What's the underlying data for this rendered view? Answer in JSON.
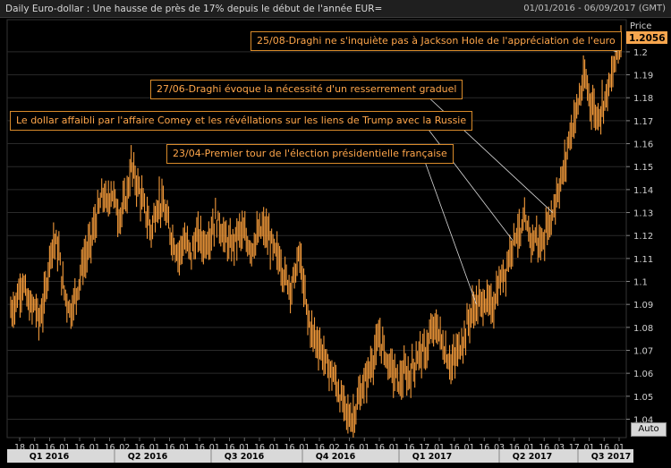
{
  "header": {
    "title": "Daily Euro-dollar : Une hausse de près de 17% depuis le début de l'année EUR=",
    "date_range": "01/01/2016 - 06/09/2017 (GMT)"
  },
  "axis": {
    "price_label": "Price",
    "last_price": "1.2056",
    "auto_label": "Auto"
  },
  "annotations": [
    {
      "text": "25/08-Draghi ne s'inquiète pas à Jackson Hole de l'appréciation de l'euro"
    },
    {
      "text": "27/06-Draghi évoque la nécessité d'un resserrement graduel"
    },
    {
      "text": "Le dollar affaibli par l'affaire Comey et les révéllations sur les liens de Trump avec la Russie"
    },
    {
      "text": "23/04-Premier tour de l'élection présidentielle française"
    }
  ],
  "chart_data": {
    "type": "bar",
    "subtype": "ohlc-bar",
    "title": "Daily Euro-dollar : Une hausse de près de 17% depuis le début de l'année EUR=",
    "ylabel": "Price",
    "ylim": [
      1.032,
      1.214
    ],
    "y_ticks": [
      1.04,
      1.05,
      1.06,
      1.07,
      1.08,
      1.09,
      1.1,
      1.11,
      1.12,
      1.13,
      1.14,
      1.15,
      1.16,
      1.17,
      1.18,
      1.19,
      1.2
    ],
    "x_tick_labels": [
      "18",
      "01",
      "16",
      "01",
      "16",
      "01",
      "16",
      "02",
      "16",
      "01",
      "16",
      "01",
      "16",
      "01",
      "16",
      "01",
      "16",
      "01",
      "16",
      "01",
      "16",
      "02",
      "16",
      "01",
      "16",
      "01",
      "16",
      "17",
      "01",
      "16",
      "01",
      "16",
      "03",
      "16",
      "01",
      "16",
      "03",
      "17",
      "01",
      "16",
      "01"
    ],
    "quarters": [
      "Q1 2016",
      "Q2 2016",
      "Q3 2016",
      "Q4 2016",
      "Q1 2017",
      "Q2 2017",
      "Q3 2017"
    ],
    "series": [
      {
        "color": "#f39a3a",
        "points": [
          [
            0,
            1.087
          ],
          [
            3,
            1.09
          ],
          [
            6,
            1.095
          ],
          [
            9,
            1.1
          ],
          [
            12,
            1.092
          ],
          [
            15,
            1.088
          ],
          [
            18,
            1.09
          ],
          [
            21,
            1.083
          ],
          [
            24,
            1.088
          ],
          [
            27,
            1.1
          ],
          [
            30,
            1.115
          ],
          [
            33,
            1.118
          ],
          [
            36,
            1.112
          ],
          [
            39,
            1.098
          ],
          [
            42,
            1.092
          ],
          [
            45,
            1.087
          ],
          [
            48,
            1.093
          ],
          [
            51,
            1.1
          ],
          [
            54,
            1.108
          ],
          [
            57,
            1.112
          ],
          [
            60,
            1.118
          ],
          [
            63,
            1.125
          ],
          [
            66,
            1.132
          ],
          [
            69,
            1.138
          ],
          [
            72,
            1.133
          ],
          [
            75,
            1.14
          ],
          [
            78,
            1.135
          ],
          [
            81,
            1.128
          ],
          [
            84,
            1.132
          ],
          [
            87,
            1.138
          ],
          [
            90,
            1.15
          ],
          [
            93,
            1.145
          ],
          [
            96,
            1.14
          ],
          [
            99,
            1.133
          ],
          [
            102,
            1.128
          ],
          [
            105,
            1.122
          ],
          [
            108,
            1.13
          ],
          [
            111,
            1.135
          ],
          [
            114,
            1.132
          ],
          [
            117,
            1.126
          ],
          [
            120,
            1.12
          ],
          [
            123,
            1.115
          ],
          [
            126,
            1.112
          ],
          [
            129,
            1.118
          ],
          [
            132,
            1.115
          ],
          [
            135,
            1.112
          ],
          [
            138,
            1.118
          ],
          [
            141,
            1.12
          ],
          [
            144,
            1.116
          ],
          [
            147,
            1.118
          ],
          [
            150,
            1.122
          ],
          [
            153,
            1.127
          ],
          [
            156,
            1.125
          ],
          [
            159,
            1.12
          ],
          [
            162,
            1.117
          ],
          [
            165,
            1.115
          ],
          [
            168,
            1.119
          ],
          [
            171,
            1.122
          ],
          [
            174,
            1.12
          ],
          [
            177,
            1.117
          ],
          [
            180,
            1.115
          ],
          [
            183,
            1.118
          ],
          [
            186,
            1.121
          ],
          [
            189,
            1.123
          ],
          [
            192,
            1.12
          ],
          [
            195,
            1.116
          ],
          [
            198,
            1.112
          ],
          [
            201,
            1.11
          ],
          [
            204,
            1.103
          ],
          [
            207,
            1.1
          ],
          [
            210,
            1.098
          ],
          [
            213,
            1.105
          ],
          [
            216,
            1.112
          ],
          [
            219,
            1.096
          ],
          [
            222,
            1.085
          ],
          [
            225,
            1.078
          ],
          [
            228,
            1.075
          ],
          [
            231,
            1.072
          ],
          [
            234,
            1.067
          ],
          [
            237,
            1.063
          ],
          [
            240,
            1.06
          ],
          [
            243,
            1.056
          ],
          [
            246,
            1.05
          ],
          [
            249,
            1.046
          ],
          [
            252,
            1.042
          ],
          [
            255,
            1.04
          ],
          [
            258,
            1.045
          ],
          [
            261,
            1.05
          ],
          [
            264,
            1.055
          ],
          [
            267,
            1.06
          ],
          [
            270,
            1.065
          ],
          [
            273,
            1.07
          ],
          [
            276,
            1.075
          ],
          [
            279,
            1.07
          ],
          [
            282,
            1.065
          ],
          [
            285,
            1.062
          ],
          [
            288,
            1.058
          ],
          [
            291,
            1.056
          ],
          [
            294,
            1.06
          ],
          [
            297,
            1.058
          ],
          [
            300,
            1.062
          ],
          [
            303,
            1.066
          ],
          [
            306,
            1.07
          ],
          [
            309,
            1.068
          ],
          [
            312,
            1.073
          ],
          [
            315,
            1.078
          ],
          [
            318,
            1.08
          ],
          [
            321,
            1.076
          ],
          [
            324,
            1.07
          ],
          [
            327,
            1.066
          ],
          [
            330,
            1.064
          ],
          [
            333,
            1.068
          ],
          [
            336,
            1.072
          ],
          [
            339,
            1.076
          ],
          [
            342,
            1.083
          ],
          [
            345,
            1.087
          ],
          [
            348,
            1.09
          ],
          [
            351,
            1.09
          ],
          [
            354,
            1.092
          ],
          [
            357,
            1.09
          ],
          [
            360,
            1.088
          ],
          [
            363,
            1.095
          ],
          [
            366,
            1.1
          ],
          [
            369,
            1.104
          ],
          [
            372,
            1.11
          ],
          [
            375,
            1.118
          ],
          [
            378,
            1.122
          ],
          [
            381,
            1.12
          ],
          [
            384,
            1.125
          ],
          [
            387,
            1.121
          ],
          [
            390,
            1.118
          ],
          [
            393,
            1.12
          ],
          [
            396,
            1.115
          ],
          [
            399,
            1.12
          ],
          [
            402,
            1.125
          ],
          [
            405,
            1.13
          ],
          [
            408,
            1.138
          ],
          [
            411,
            1.143
          ],
          [
            414,
            1.15
          ],
          [
            417,
            1.162
          ],
          [
            420,
            1.168
          ],
          [
            423,
            1.175
          ],
          [
            426,
            1.182
          ],
          [
            429,
            1.188
          ],
          [
            432,
            1.182
          ],
          [
            435,
            1.176
          ],
          [
            438,
            1.172
          ],
          [
            441,
            1.175
          ],
          [
            444,
            1.18
          ],
          [
            447,
            1.185
          ],
          [
            450,
            1.19
          ],
          [
            453,
            1.2
          ],
          [
            456,
            1.206
          ]
        ]
      }
    ],
    "last_value": 1.2056
  }
}
